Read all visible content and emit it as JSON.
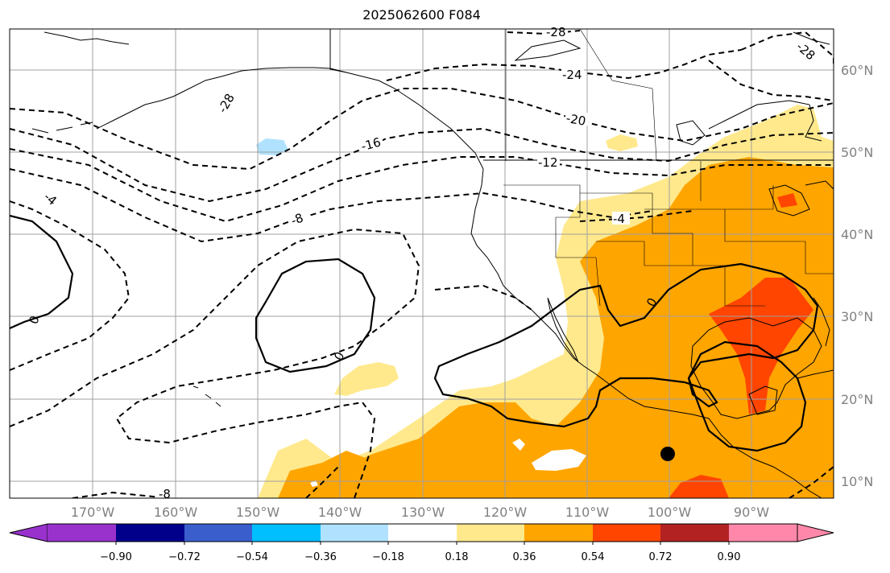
{
  "title": "2025062600 F084",
  "map": {
    "lat_labels": [
      "60°N",
      "50°N",
      "40°N",
      "30°N",
      "20°N",
      "10°N"
    ],
    "lon_labels": [
      "170°W",
      "160°W",
      "150°W",
      "140°W",
      "130°W",
      "120°W",
      "110°W",
      "100°W",
      "90°W"
    ],
    "contour_labels": [
      "-28",
      "-24",
      "-20",
      "-16",
      "-12",
      "-8",
      "-4",
      "-4",
      "-28",
      "-4",
      "-8",
      "0",
      "0",
      "0",
      "-8",
      "-28"
    ],
    "colors": {
      "grid": "#a0a0a0",
      "coast": "#000000",
      "light_yellow": "#ffe98c",
      "orange": "#ffa500",
      "red_orange": "#ff4500"
    }
  },
  "colorbar": {
    "ticks": [
      "−0.90",
      "−0.72",
      "−0.54",
      "−0.36",
      "−0.18",
      "0.18",
      "0.36",
      "0.54",
      "0.72",
      "0.90"
    ],
    "colors": [
      "#9932cc",
      "#00008b",
      "#3a5fcd",
      "#00bfff",
      "#b0e2ff",
      "#ffffff",
      "#ffe98c",
      "#ffa500",
      "#ff4500",
      "#b22222",
      "#ff88aa"
    ]
  }
}
